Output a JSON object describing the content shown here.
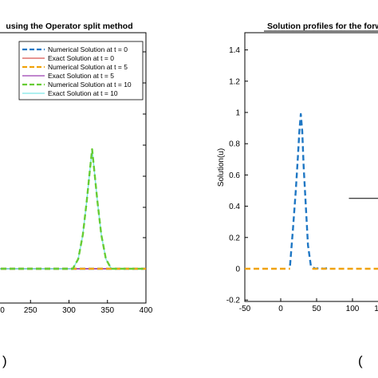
{
  "colors": {
    "num_t0": "#1f77c4",
    "exact_t0": "#d9534f",
    "num_t5": "#f0a20a",
    "exact_t5": "#9a3fb0",
    "num_t10": "#66cc33",
    "exact_t10": "#7ee6e6"
  },
  "chart_data": [
    {
      "type": "line",
      "title": "using the Operator split method",
      "xlabel": "",
      "ylabel": "",
      "xlim": [
        200,
        400
      ],
      "x_ticks": [
        "250",
        "300",
        "350",
        "400"
      ],
      "partial_tick_labels": [
        "0"
      ],
      "legend_position": "top-right",
      "panel_label": ")",
      "series": [
        {
          "name": "Numerical Solution at t = 0",
          "style": "dashed",
          "color_key": "num_t0",
          "x": [
            200,
            400
          ],
          "y": [
            0,
            0
          ]
        },
        {
          "name": "Exact Solution at t = 0",
          "style": "solid",
          "color_key": "exact_t0",
          "x": [
            200,
            400
          ],
          "y": [
            0,
            0
          ]
        },
        {
          "name": "Numerical Solution at t = 5",
          "style": "dashed",
          "color_key": "num_t5",
          "x": [
            200,
            400
          ],
          "y": [
            0,
            0
          ]
        },
        {
          "name": "Exact Solution at t = 5",
          "style": "solid",
          "color_key": "exact_t5",
          "x": [
            200,
            310,
            330,
            350,
            400
          ],
          "y": [
            0,
            0,
            0,
            0,
            0
          ]
        },
        {
          "name": "Numerical Solution at t = 10",
          "style": "dashed",
          "color_key": "num_t10",
          "x": [
            200,
            305,
            312,
            318,
            323,
            327,
            330,
            333,
            337,
            342,
            348,
            355,
            400
          ],
          "y": [
            0,
            0,
            0.08,
            0.28,
            0.55,
            0.8,
            0.98,
            0.8,
            0.55,
            0.28,
            0.08,
            0,
            0
          ]
        },
        {
          "name": "Exact Solution at t = 10",
          "style": "solid",
          "color_key": "exact_t10",
          "x": [
            200,
            305,
            312,
            318,
            323,
            327,
            330,
            333,
            337,
            342,
            348,
            355,
            400
          ],
          "y": [
            0,
            0,
            0.08,
            0.28,
            0.55,
            0.8,
            0.98,
            0.8,
            0.55,
            0.28,
            0.08,
            0,
            0
          ]
        }
      ]
    },
    {
      "type": "line",
      "title": "Solution profiles for the forw",
      "xlabel": "",
      "ylabel": "Solution(u)",
      "xlim": [
        -50,
        150
      ],
      "ylim": [
        -0.2,
        1.5
      ],
      "x_ticks": [
        "-50",
        "0",
        "50",
        "100"
      ],
      "y_ticks": [
        "-0.2",
        "0",
        "0.2",
        "0.4",
        "0.6",
        "0.8",
        "1",
        "1.2",
        "1.4"
      ],
      "partial_tick_labels": [
        "1"
      ],
      "panel_label": "(",
      "series": [
        {
          "style": "dashed",
          "color_key": "num_t0",
          "x": [
            13,
            17,
            21,
            24,
            26,
            28,
            30,
            32,
            35,
            38,
            42,
            48,
            54,
            60,
            66
          ],
          "y": [
            0.02,
            0.25,
            0.5,
            0.72,
            0.88,
            0.99,
            0.88,
            0.65,
            0.4,
            0.15,
            0.02,
            0,
            0.005,
            0,
            0.005
          ]
        },
        {
          "style": "dashed",
          "color_key": "num_t5",
          "x": [
            -50,
            13
          ],
          "y": [
            0,
            0
          ]
        },
        {
          "style": "dashed",
          "color_key": "num_t5",
          "x": [
            44,
            150
          ],
          "y": [
            0,
            0
          ]
        }
      ],
      "annotations": [
        {
          "type": "arrow",
          "from": [
            95,
            0.45
          ],
          "to": [
            147,
            0.45
          ]
        }
      ]
    }
  ]
}
